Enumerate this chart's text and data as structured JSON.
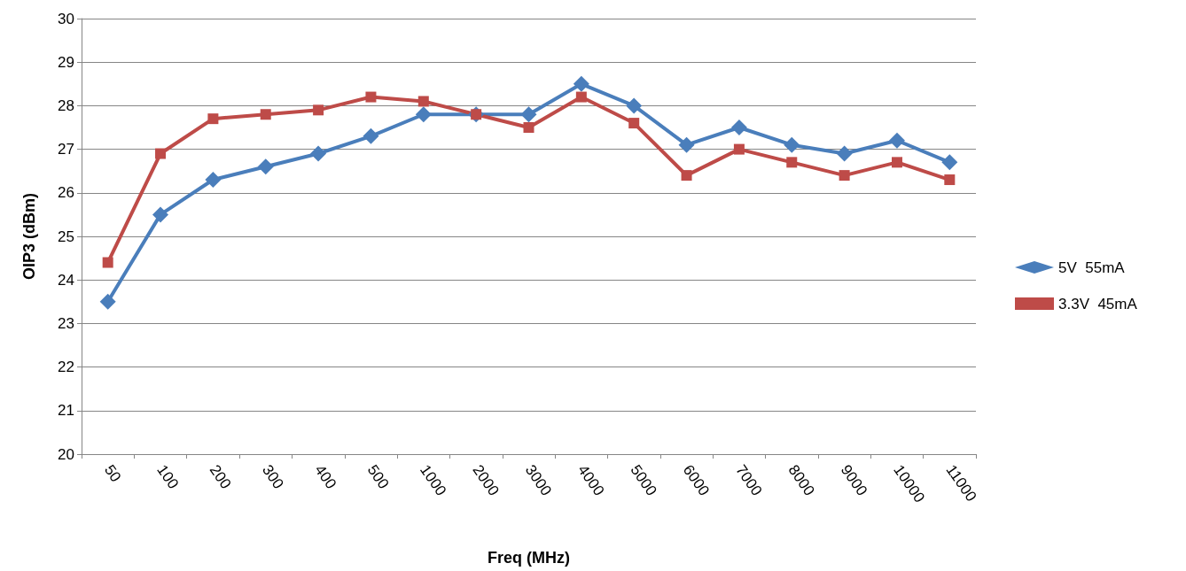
{
  "chart_data": {
    "type": "line",
    "xlabel": "Freq (MHz)",
    "ylabel": "OIP3 (dBm)",
    "categories": [
      "50",
      "100",
      "200",
      "300",
      "400",
      "500",
      "1000",
      "2000",
      "3000",
      "4000",
      "5000",
      "6000",
      "7000",
      "8000",
      "9000",
      "10000",
      "11000"
    ],
    "series": [
      {
        "name": "5V  55mA",
        "color": "#4a7ebb",
        "marker": "diamond",
        "values": [
          23.5,
          25.5,
          26.3,
          26.6,
          26.9,
          27.3,
          27.8,
          27.8,
          27.8,
          28.5,
          28.0,
          27.1,
          27.5,
          27.1,
          26.9,
          27.2,
          26.7
        ]
      },
      {
        "name": "3.3V  45mA",
        "color": "#be4b48",
        "marker": "square",
        "values": [
          24.4,
          26.9,
          27.7,
          27.8,
          27.9,
          28.2,
          28.1,
          27.8,
          27.5,
          28.2,
          27.6,
          26.4,
          27.0,
          26.7,
          26.4,
          26.7,
          26.3
        ]
      }
    ],
    "ylim": [
      20,
      30
    ],
    "yticks": [
      20,
      21,
      22,
      23,
      24,
      25,
      26,
      27,
      28,
      29,
      30
    ],
    "grid": "y",
    "legend": "right",
    "line_style": "solid"
  }
}
